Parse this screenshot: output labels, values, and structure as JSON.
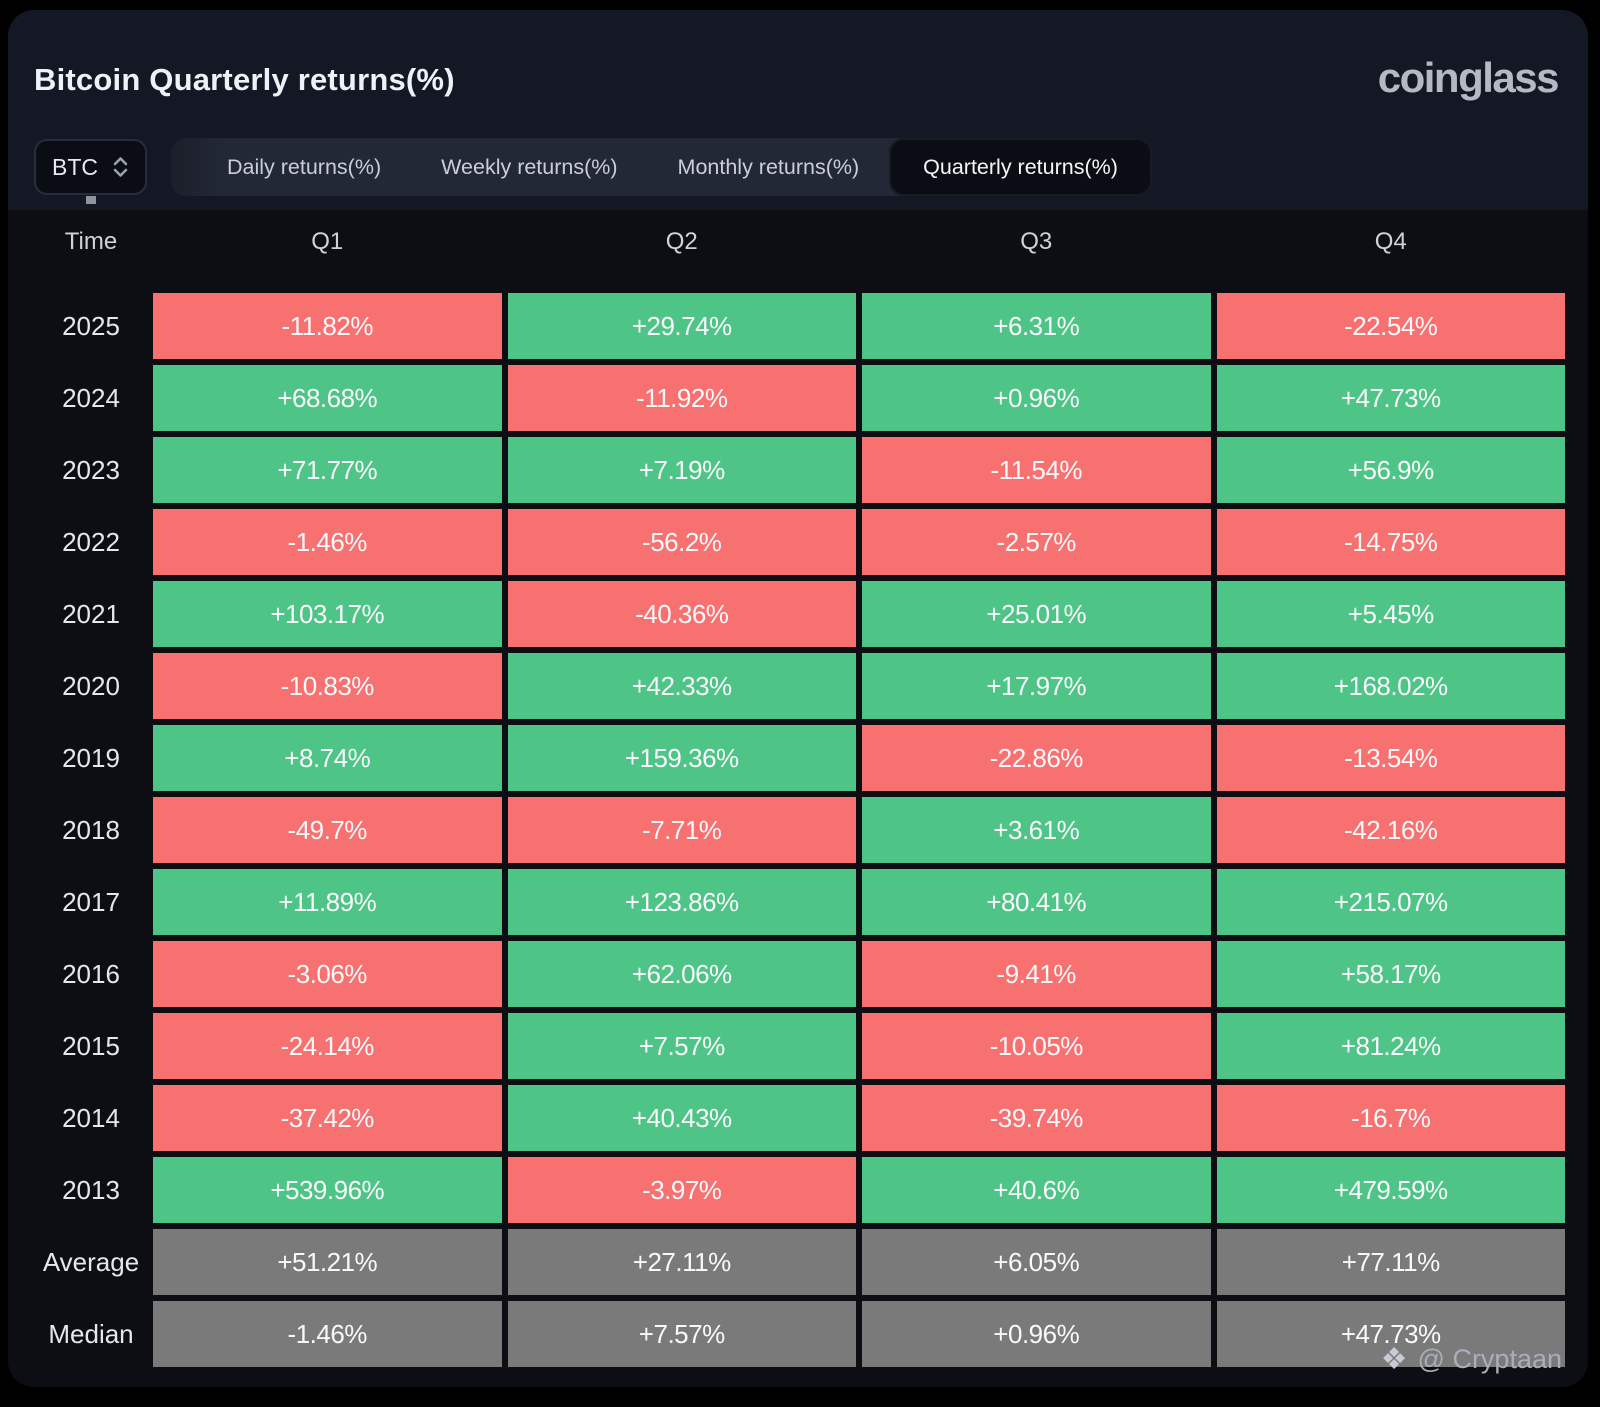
{
  "header": {
    "title": "Bitcoin Quarterly returns(%)",
    "brand": "coinglass"
  },
  "controls": {
    "coin_select": {
      "value": "BTC",
      "icon": "chevron-up-down-icon"
    },
    "tabs": [
      {
        "label": "Daily returns(%)",
        "active": false
      },
      {
        "label": "Weekly returns(%)",
        "active": false
      },
      {
        "label": "Monthly returns(%)",
        "active": false
      },
      {
        "label": "Quarterly returns(%)",
        "active": true
      }
    ]
  },
  "chart_data": {
    "type": "table",
    "title": "Bitcoin Quarterly returns(%)",
    "columns": [
      "Time",
      "Q1",
      "Q2",
      "Q3",
      "Q4"
    ],
    "rows": [
      {
        "time": "2025",
        "summary": false,
        "values": [
          "-11.82%",
          "+29.74%",
          "+6.31%",
          "-22.54%"
        ]
      },
      {
        "time": "2024",
        "summary": false,
        "values": [
          "+68.68%",
          "-11.92%",
          "+0.96%",
          "+47.73%"
        ]
      },
      {
        "time": "2023",
        "summary": false,
        "values": [
          "+71.77%",
          "+7.19%",
          "-11.54%",
          "+56.9%"
        ]
      },
      {
        "time": "2022",
        "summary": false,
        "values": [
          "-1.46%",
          "-56.2%",
          "-2.57%",
          "-14.75%"
        ]
      },
      {
        "time": "2021",
        "summary": false,
        "values": [
          "+103.17%",
          "-40.36%",
          "+25.01%",
          "+5.45%"
        ]
      },
      {
        "time": "2020",
        "summary": false,
        "values": [
          "-10.83%",
          "+42.33%",
          "+17.97%",
          "+168.02%"
        ]
      },
      {
        "time": "2019",
        "summary": false,
        "values": [
          "+8.74%",
          "+159.36%",
          "-22.86%",
          "-13.54%"
        ]
      },
      {
        "time": "2018",
        "summary": false,
        "values": [
          "-49.7%",
          "-7.71%",
          "+3.61%",
          "-42.16%"
        ]
      },
      {
        "time": "2017",
        "summary": false,
        "values": [
          "+11.89%",
          "+123.86%",
          "+80.41%",
          "+215.07%"
        ]
      },
      {
        "time": "2016",
        "summary": false,
        "values": [
          "-3.06%",
          "+62.06%",
          "-9.41%",
          "+58.17%"
        ]
      },
      {
        "time": "2015",
        "summary": false,
        "values": [
          "-24.14%",
          "+7.57%",
          "-10.05%",
          "+81.24%"
        ]
      },
      {
        "time": "2014",
        "summary": false,
        "values": [
          "-37.42%",
          "+40.43%",
          "-39.74%",
          "-16.7%"
        ]
      },
      {
        "time": "2013",
        "summary": false,
        "values": [
          "+539.96%",
          "-3.97%",
          "+40.6%",
          "+479.59%"
        ]
      },
      {
        "time": "Average",
        "summary": true,
        "values": [
          "+51.21%",
          "+27.11%",
          "+6.05%",
          "+77.11%"
        ]
      },
      {
        "time": "Median",
        "summary": true,
        "values": [
          "-1.46%",
          "+7.57%",
          "+0.96%",
          "+47.73%"
        ]
      }
    ],
    "legend": "green = positive quarterly return, red = negative quarterly return, grey = Average/Median summary rows"
  },
  "footer": {
    "logo_glyph": "❖",
    "credit": "@ Cryptaan"
  },
  "colors": {
    "positive": "#4ec487",
    "negative": "#f87171",
    "neutral": "#7a7a7a",
    "card_bg": "#141824",
    "table_bg": "#0c0e14"
  }
}
